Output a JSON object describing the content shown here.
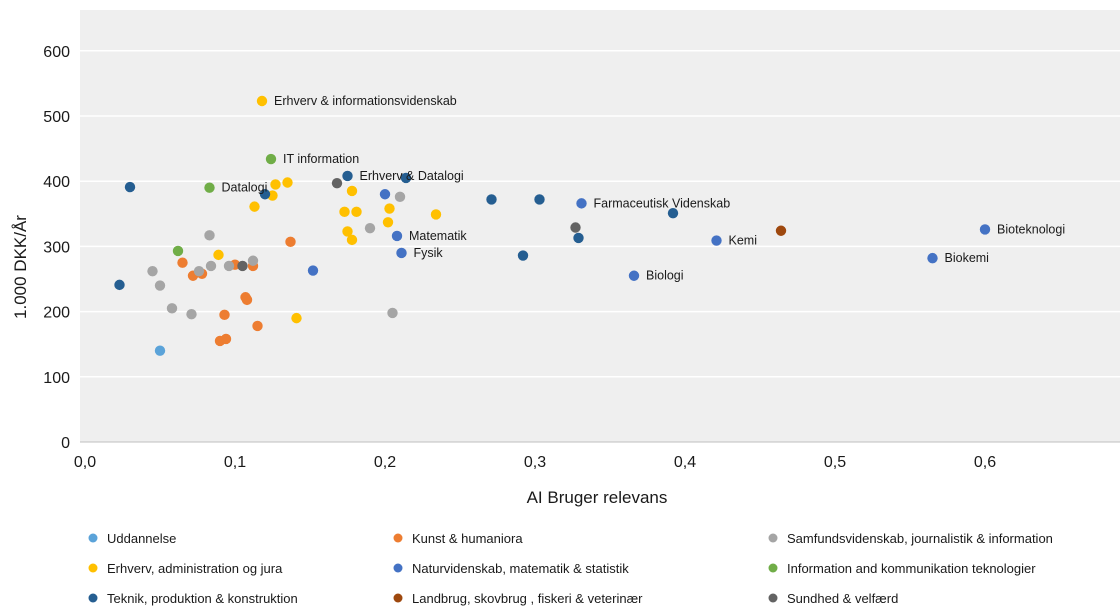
{
  "chart_data": {
    "type": "scatter",
    "xlabel": "AI Bruger relevans",
    "ylabel": "1.000 DKK/År",
    "xlim": [
      0,
      0.69
    ],
    "ylim": [
      0,
      650
    ],
    "x_ticks": [
      "0,0",
      "0,1",
      "0,2",
      "0,3",
      "0,4",
      "0,5",
      "0,6"
    ],
    "x_tick_values": [
      0,
      0.1,
      0.2,
      0.3,
      0.4,
      0.5,
      0.6
    ],
    "y_ticks": [
      "0",
      "100",
      "200",
      "300",
      "400",
      "500",
      "600"
    ],
    "y_tick_values": [
      0,
      100,
      200,
      300,
      400,
      500,
      600
    ],
    "grid": "horizontal",
    "plot_background": "#efefef",
    "legend_position": "bottom",
    "series": [
      {
        "name": "Uddannelse",
        "color": "#5ba3d9",
        "points": [
          [
            0.05,
            140
          ]
        ]
      },
      {
        "name": "Kunst & humaniora",
        "color": "#ed7d31",
        "points": [
          [
            0.065,
            275
          ],
          [
            0.072,
            255
          ],
          [
            0.078,
            258
          ],
          [
            0.1,
            272
          ],
          [
            0.107,
            222
          ],
          [
            0.108,
            218
          ],
          [
            0.112,
            270
          ],
          [
            0.093,
            195
          ],
          [
            0.09,
            155
          ],
          [
            0.094,
            158
          ],
          [
            0.115,
            178
          ],
          [
            0.137,
            307
          ]
        ]
      },
      {
        "name": "Samfundsvidenskab, journalistik & information",
        "color": "#a5a5a5",
        "points": [
          [
            0.045,
            262
          ],
          [
            0.05,
            240
          ],
          [
            0.058,
            205
          ],
          [
            0.071,
            196
          ],
          [
            0.076,
            262
          ],
          [
            0.084,
            270
          ],
          [
            0.083,
            317
          ],
          [
            0.096,
            270
          ],
          [
            0.112,
            278
          ],
          [
            0.19,
            328
          ],
          [
            0.205,
            198
          ],
          [
            0.21,
            376
          ]
        ]
      },
      {
        "name": "Erhverv, administration og jura",
        "color": "#ffc000",
        "points": [
          [
            0.118,
            523
          ],
          [
            0.089,
            287
          ],
          [
            0.113,
            361
          ],
          [
            0.125,
            378
          ],
          [
            0.127,
            395
          ],
          [
            0.135,
            398
          ],
          [
            0.141,
            190
          ],
          [
            0.173,
            353
          ],
          [
            0.175,
            323
          ],
          [
            0.178,
            385
          ],
          [
            0.178,
            310
          ],
          [
            0.181,
            353
          ],
          [
            0.202,
            337
          ],
          [
            0.203,
            358
          ],
          [
            0.234,
            349
          ]
        ]
      },
      {
        "name": "Naturvidenskab, matematik & statistik",
        "color": "#4472c4",
        "points": [
          [
            0.152,
            263
          ],
          [
            0.2,
            380
          ],
          [
            0.208,
            316
          ],
          [
            0.211,
            290
          ],
          [
            0.331,
            366
          ],
          [
            0.366,
            255
          ],
          [
            0.421,
            309
          ],
          [
            0.565,
            282
          ],
          [
            0.6,
            326
          ]
        ]
      },
      {
        "name": "Information and kommunikation teknologier",
        "color": "#70ad47",
        "points": [
          [
            0.083,
            390
          ],
          [
            0.062,
            293
          ],
          [
            0.124,
            434
          ]
        ]
      },
      {
        "name": "Teknik, produktion & konstruktion",
        "color": "#255e91",
        "points": [
          [
            0.023,
            241
          ],
          [
            0.03,
            391
          ],
          [
            0.12,
            380
          ],
          [
            0.175,
            408
          ],
          [
            0.214,
            405
          ],
          [
            0.271,
            372
          ],
          [
            0.292,
            286
          ],
          [
            0.303,
            372
          ],
          [
            0.329,
            313
          ],
          [
            0.392,
            351
          ]
        ]
      },
      {
        "name": "Landbrug, skovbrug , fiskeri & veterinær",
        "color": "#9e480e",
        "points": [
          [
            0.464,
            324
          ]
        ]
      },
      {
        "name": "Sundhed & velfærd",
        "color": "#636363",
        "points": [
          [
            0.105,
            270
          ],
          [
            0.168,
            397
          ],
          [
            0.327,
            329
          ]
        ]
      }
    ],
    "annotations": [
      {
        "text": "Erhverv & informationsvidenskab",
        "x": 0.118,
        "y": 523
      },
      {
        "text": "IT information",
        "x": 0.124,
        "y": 434
      },
      {
        "text": "Erhverv & Datalogi",
        "x": 0.175,
        "y": 408
      },
      {
        "text": "Datalogi",
        "x": 0.083,
        "y": 390
      },
      {
        "text": "Farmaceutisk Videnskab",
        "x": 0.331,
        "y": 366
      },
      {
        "text": "Matematik",
        "x": 0.208,
        "y": 316
      },
      {
        "text": "Fysik",
        "x": 0.211,
        "y": 290
      },
      {
        "text": "Kemi",
        "x": 0.421,
        "y": 309
      },
      {
        "text": "Biologi",
        "x": 0.366,
        "y": 255
      },
      {
        "text": "Bioteknologi",
        "x": 0.6,
        "y": 326
      },
      {
        "text": "Biokemi",
        "x": 0.565,
        "y": 282
      }
    ]
  }
}
